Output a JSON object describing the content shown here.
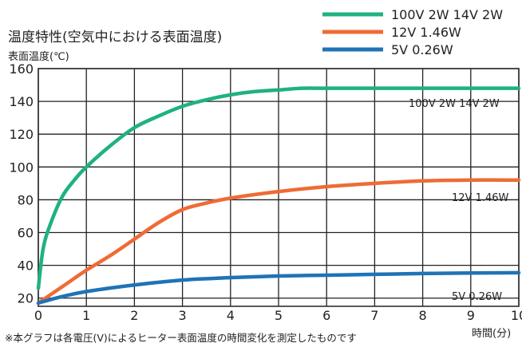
{
  "chart_data": {
    "type": "line",
    "title": "温度特性(空気中における表面温度)",
    "ylabel": "表面温度(℃)",
    "xlabel": "時間(分)",
    "note": "※本グラフは各電圧(V)によるヒーター表面温度の時間変化を測定したものです",
    "xlim": [
      0,
      10
    ],
    "ylim": [
      15,
      160
    ],
    "xticks": [
      "0",
      "1",
      "2",
      "3",
      "4",
      "5",
      "6",
      "7",
      "8",
      "9",
      "10"
    ],
    "yticks": [
      "20",
      "40",
      "60",
      "80",
      "100",
      "120",
      "140",
      "160"
    ],
    "grid": true,
    "legend_position": "top-right",
    "series": [
      {
        "name": "100V 2W  14V 2W",
        "inline_label": "100V 2W 14V 2W",
        "color": "#1fb27e",
        "points": [
          [
            0,
            26
          ],
          [
            0.1,
            50
          ],
          [
            0.25,
            65
          ],
          [
            0.5,
            82
          ],
          [
            0.75,
            92
          ],
          [
            1,
            100
          ],
          [
            1.5,
            113
          ],
          [
            2,
            124
          ],
          [
            2.5,
            131
          ],
          [
            3,
            137
          ],
          [
            3.5,
            141
          ],
          [
            4,
            144
          ],
          [
            4.5,
            146
          ],
          [
            5,
            147
          ],
          [
            5.5,
            148
          ],
          [
            6,
            148
          ],
          [
            7,
            148
          ],
          [
            8,
            148
          ],
          [
            9,
            148
          ],
          [
            10,
            148
          ]
        ]
      },
      {
        "name": "12V 1.46W",
        "inline_label": "12V 1.46W",
        "color": "#ef6b35",
        "points": [
          [
            0,
            17
          ],
          [
            0.5,
            27
          ],
          [
            1,
            37
          ],
          [
            1.5,
            46
          ],
          [
            2,
            56
          ],
          [
            2.5,
            66
          ],
          [
            3,
            74
          ],
          [
            3.5,
            78
          ],
          [
            4,
            81
          ],
          [
            5,
            85
          ],
          [
            6,
            88
          ],
          [
            7,
            90
          ],
          [
            8,
            91.5
          ],
          [
            9,
            92
          ],
          [
            10,
            92
          ]
        ]
      },
      {
        "name": "5V 0.26W",
        "inline_label": "5V 0.26W",
        "color": "#1f73b6",
        "points": [
          [
            0,
            17
          ],
          [
            0.5,
            21
          ],
          [
            1,
            24
          ],
          [
            2,
            28
          ],
          [
            3,
            31
          ],
          [
            4,
            32.5
          ],
          [
            5,
            33.5
          ],
          [
            6,
            34
          ],
          [
            7,
            34.5
          ],
          [
            8,
            35
          ],
          [
            9,
            35.3
          ],
          [
            10,
            35.5
          ]
        ]
      }
    ]
  }
}
